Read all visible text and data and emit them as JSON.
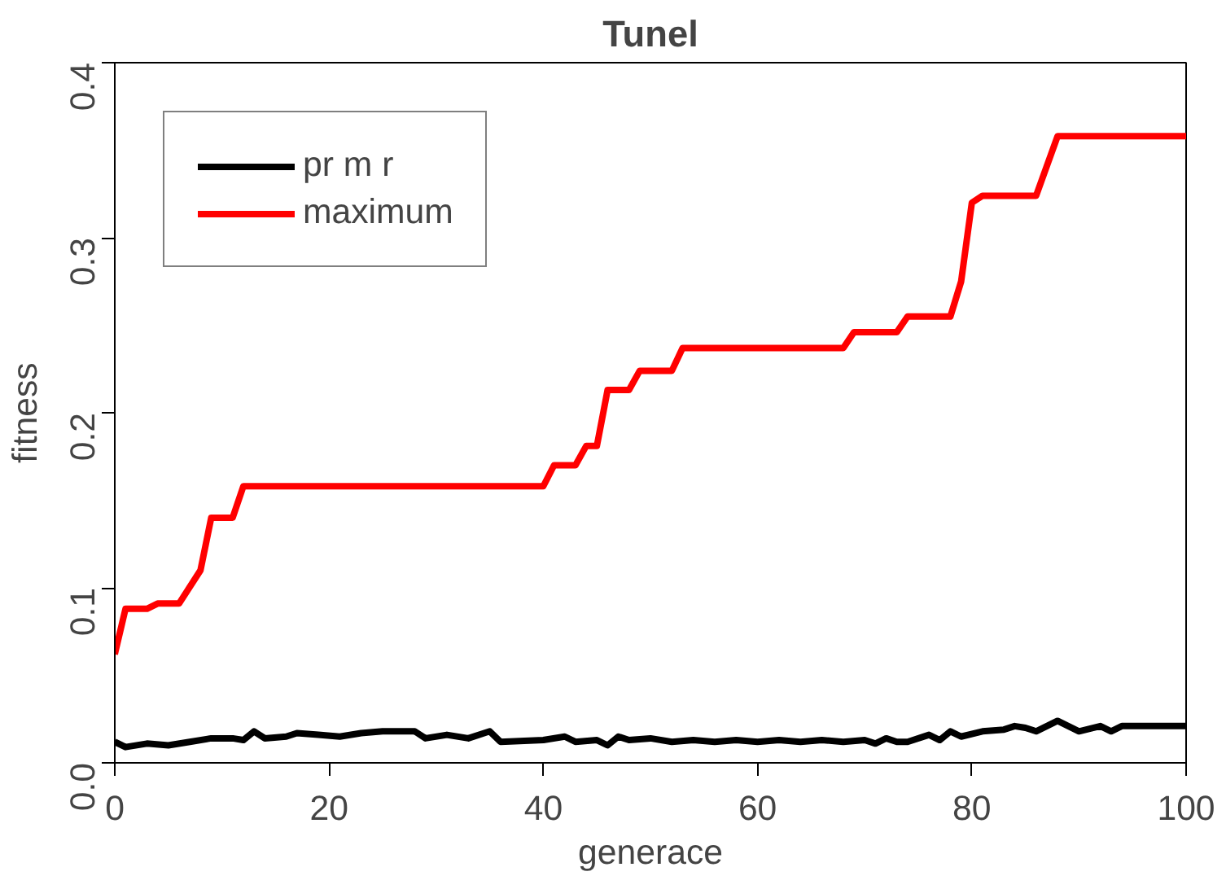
{
  "chart_data": {
    "type": "line",
    "title": "Tunel",
    "xlabel": "generace",
    "ylabel": "fitness",
    "xlim": [
      0,
      100
    ],
    "ylim": [
      0,
      0.4
    ],
    "xticks": [
      0,
      20,
      40,
      60,
      80,
      100
    ],
    "yticks": [
      {
        "value": 0,
        "label": "0.0"
      },
      0.1,
      0.2,
      0.3,
      0.4
    ],
    "grid": false,
    "legend": "top left",
    "line_style": "solid",
    "series": [
      {
        "name": "pr m r",
        "color": "#000000",
        "x": [
          0,
          1,
          3,
          5,
          7,
          9,
          11,
          12,
          13,
          14,
          16,
          17,
          19,
          21,
          23,
          25,
          28,
          29,
          31,
          33,
          35,
          36,
          40,
          42,
          43,
          45,
          46,
          47,
          48,
          50,
          52,
          54,
          56,
          58,
          60,
          62,
          64,
          66,
          68,
          70,
          71,
          72,
          73,
          74,
          76,
          77,
          78,
          79,
          81,
          83,
          84,
          85,
          86,
          88,
          90,
          92,
          93,
          94,
          96,
          100
        ],
        "values": [
          0.012,
          0.009,
          0.011,
          0.01,
          0.012,
          0.014,
          0.014,
          0.013,
          0.018,
          0.014,
          0.015,
          0.017,
          0.016,
          0.015,
          0.017,
          0.018,
          0.018,
          0.014,
          0.016,
          0.014,
          0.018,
          0.012,
          0.013,
          0.015,
          0.012,
          0.013,
          0.01,
          0.015,
          0.013,
          0.014,
          0.012,
          0.013,
          0.012,
          0.013,
          0.012,
          0.013,
          0.012,
          0.013,
          0.012,
          0.013,
          0.011,
          0.014,
          0.012,
          0.012,
          0.016,
          0.013,
          0.018,
          0.015,
          0.018,
          0.019,
          0.021,
          0.02,
          0.018,
          0.024,
          0.018,
          0.021,
          0.018,
          0.021,
          0.021,
          0.021
        ]
      },
      {
        "name": "maximum",
        "color": "#ff0000",
        "x": [
          0,
          1,
          3,
          4,
          6,
          8,
          9,
          11,
          12,
          40,
          41,
          43,
          44,
          45,
          46,
          48,
          49,
          52,
          53,
          68,
          69,
          73,
          74,
          78,
          79,
          80,
          81,
          86,
          88,
          100
        ],
        "values": [
          0.062,
          0.088,
          0.088,
          0.091,
          0.091,
          0.11,
          0.14,
          0.14,
          0.158,
          0.158,
          0.17,
          0.17,
          0.181,
          0.181,
          0.213,
          0.213,
          0.224,
          0.224,
          0.237,
          0.237,
          0.246,
          0.246,
          0.255,
          0.255,
          0.275,
          0.32,
          0.324,
          0.324,
          0.358,
          0.358
        ]
      }
    ]
  }
}
